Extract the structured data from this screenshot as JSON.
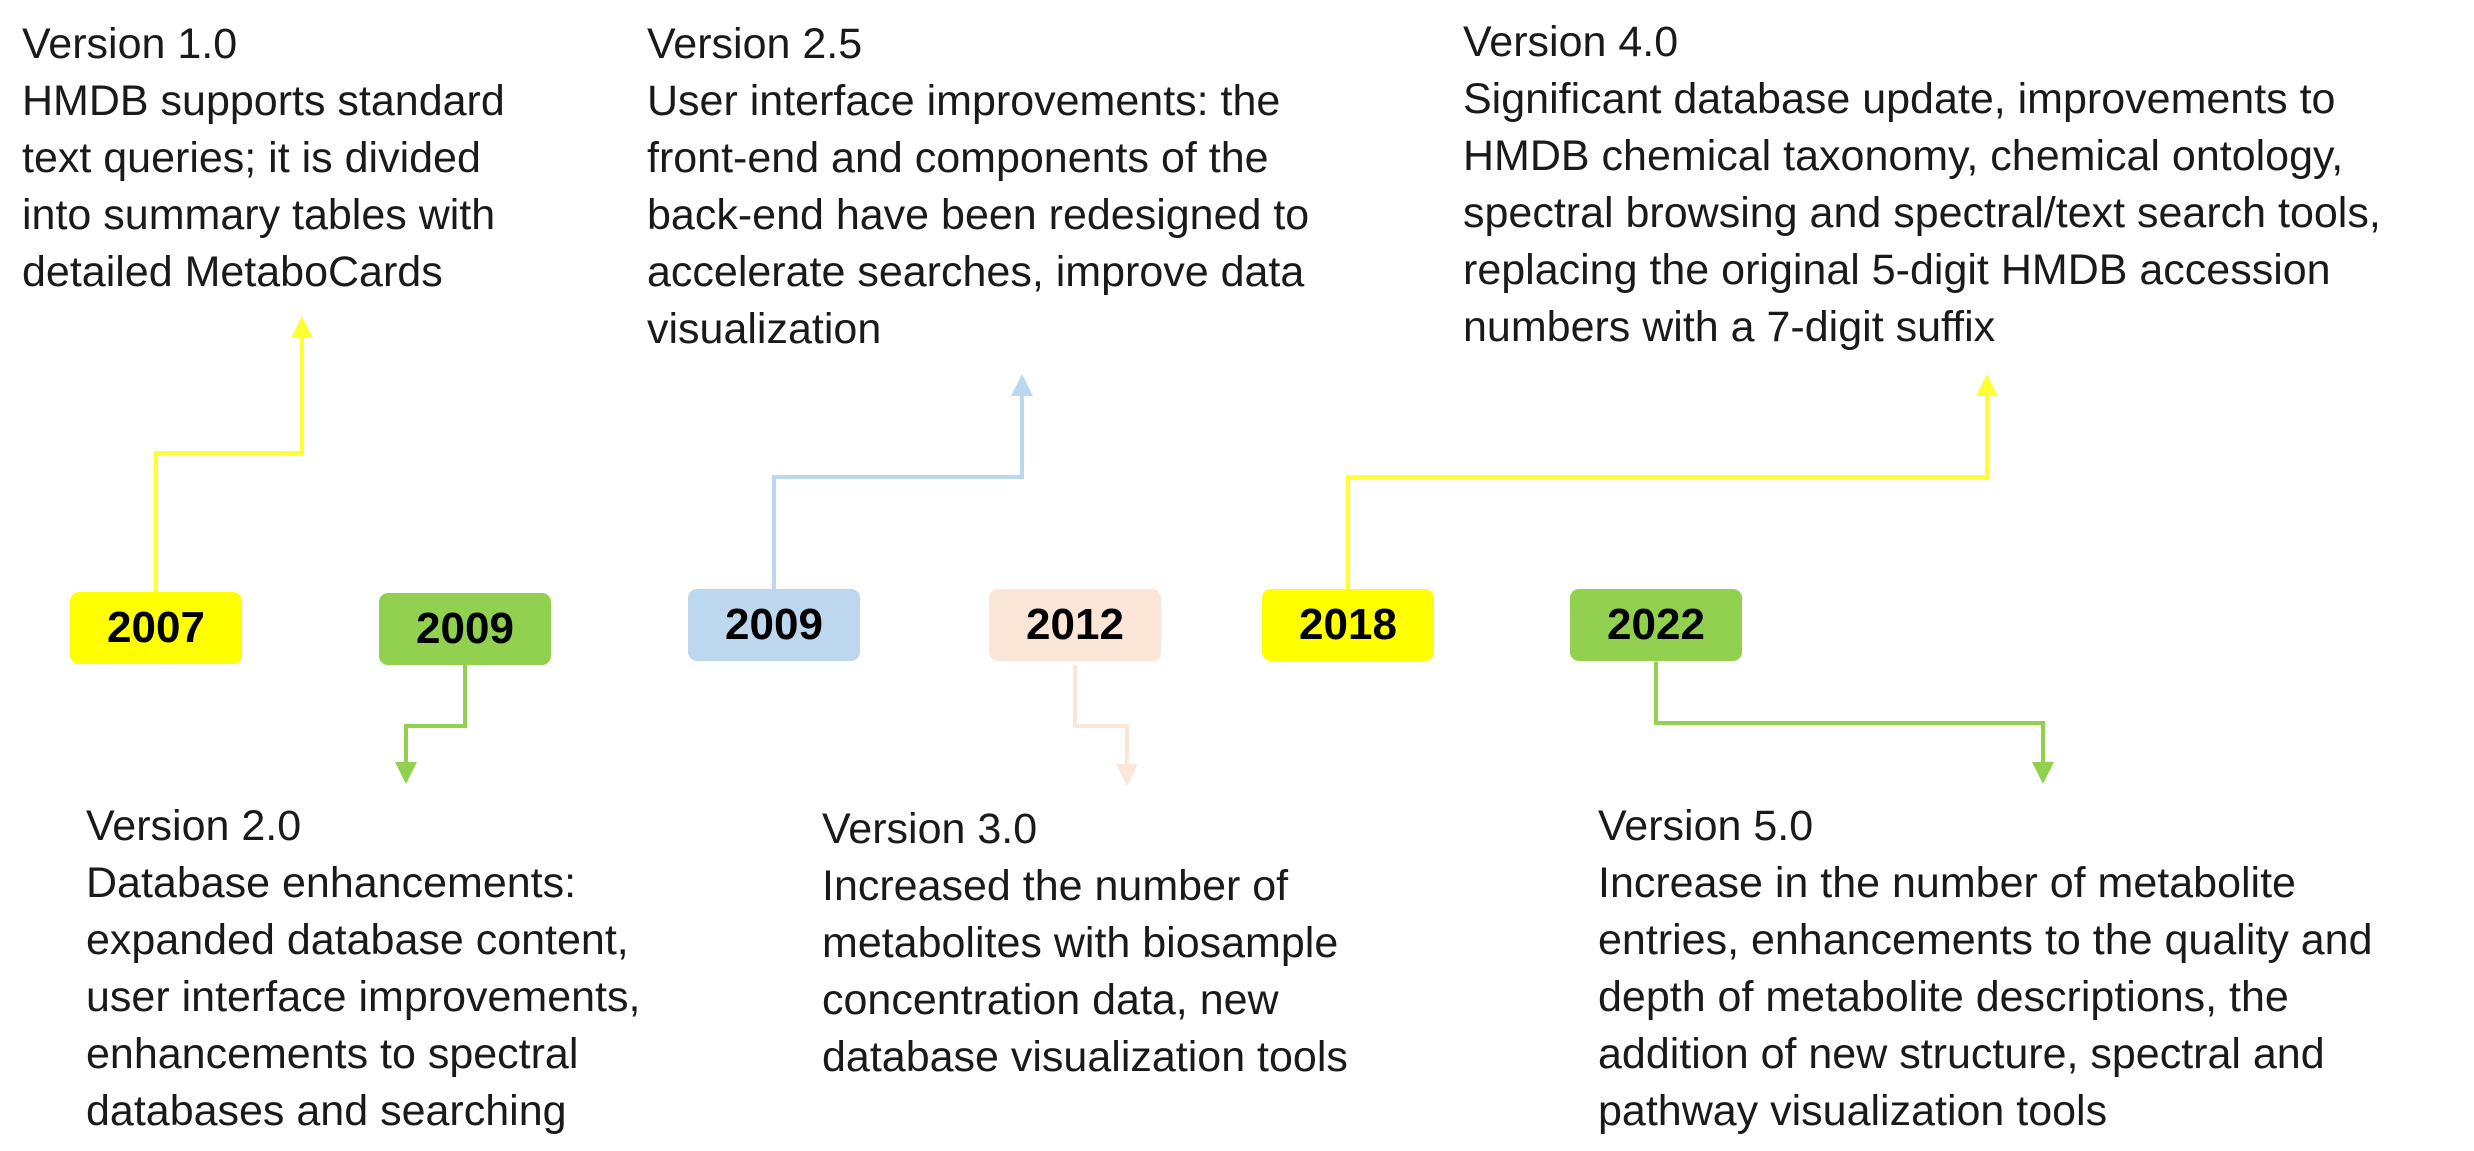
{
  "timeline": [
    {
      "year": "2007",
      "version": "Version 1.0",
      "lines": [
        "HMDB supports standard",
        "text queries; it is divided",
        "into summary tables with",
        "detailed MetaboCards"
      ],
      "color": "#ffff00",
      "line_color": "#ffff33"
    },
    {
      "year": "2009",
      "version": "Version 2.0",
      "lines": [
        "Database enhancements:",
        "expanded database content,",
        "user interface improvements,",
        "enhancements to spectral",
        "databases and searching"
      ],
      "color": "#92d050",
      "line_color": "#92d050"
    },
    {
      "year": "2009",
      "version": "Version 2.5",
      "lines": [
        "User interface improvements: the",
        "front-end and components of the",
        "back-end have been redesigned to",
        "accelerate searches, improve data",
        "visualization"
      ],
      "color": "#bdd7ee",
      "line_color": "#bdd7ee"
    },
    {
      "year": "2012",
      "version": "Version 3.0",
      "lines": [
        "Increased the number of",
        "metabolites with biosample",
        "concentration data, new",
        "database visualization tools"
      ],
      "color": "#fbe5d6",
      "line_color": "#fbe5d6"
    },
    {
      "year": "2018",
      "version": "Version 4.0",
      "lines": [
        "Significant database update, improvements to",
        "HMDB chemical taxonomy, chemical ontology,",
        "spectral browsing and spectral/text search tools,",
        "replacing the original 5-digit HMDB accession",
        "numbers with a 7-digit suffix"
      ],
      "color": "#ffff00",
      "line_color": "#ffff33"
    },
    {
      "year": "2022",
      "version": "Version 5.0",
      "lines": [
        "Increase in the number of metabolite",
        "entries, enhancements to the quality and",
        "depth of metabolite descriptions, the",
        "addition of new structure, spectral and",
        "pathway visualization tools"
      ],
      "color": "#92d050",
      "line_color": "#92d050"
    }
  ]
}
